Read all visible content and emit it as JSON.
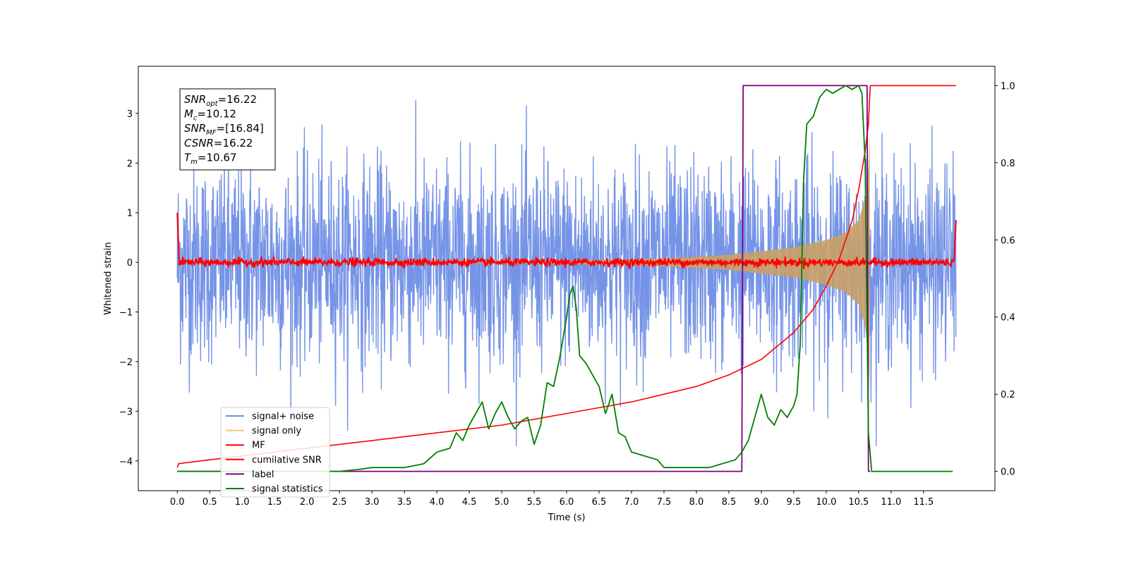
{
  "chart_data": {
    "type": "line",
    "xlabel": "Time (s)",
    "ylabel_left": "Whitened strain",
    "ylabel_right": "",
    "xlim": [
      -0.6,
      12.6
    ],
    "ylim_left": [
      -4.6,
      3.95
    ],
    "ylim_right": [
      -0.05,
      1.05
    ],
    "x_ticks": [
      "0.0",
      "0.5",
      "1.0",
      "1.5",
      "2.0",
      "2.5",
      "3.0",
      "3.5",
      "4.0",
      "4.5",
      "5.0",
      "5.5",
      "6.0",
      "6.5",
      "7.0",
      "7.5",
      "8.0",
      "8.5",
      "9.0",
      "9.5",
      "10.0",
      "10.5",
      "11.0",
      "11.5"
    ],
    "y_ticks_left": [
      "3",
      "2",
      "1",
      "0",
      "−1",
      "−2",
      "−3",
      "−4"
    ],
    "y_ticks_right": [
      "1.0",
      "0.8",
      "0.6",
      "0.4",
      "0.2",
      "0.0"
    ],
    "grid": false,
    "legend_position": "lower-left",
    "annotation": [
      {
        "name": "SNR",
        "sub": "opt",
        "value": "=16.22"
      },
      {
        "name": "M",
        "sub": "c",
        "value": "=10.12"
      },
      {
        "name": "SNR",
        "sub": "MF",
        "value": "=[16.84]"
      },
      {
        "name": "CSNR",
        "sub": "",
        "value": "=16.22"
      },
      {
        "name": "T",
        "sub": "m",
        "value": "=10.67"
      }
    ],
    "series": [
      {
        "name": "signal+ noise",
        "color": "#6f8ee6",
        "axis": "left",
        "description_values": {
          "t_start": 0.0,
          "t_end": 12.0,
          "noise_std": 1.0,
          "typical_peak": 3.5
        }
      },
      {
        "name": "signal only",
        "color": "#f5c66c",
        "axis": "left",
        "envelope": {
          "t": [
            0.0,
            6.0,
            7.5,
            8.5,
            9.5,
            10.0,
            10.3,
            10.5,
            10.6,
            10.65,
            10.67
          ],
          "amp": [
            0.0,
            0.03,
            0.08,
            0.15,
            0.3,
            0.45,
            0.6,
            0.85,
            1.3,
            1.9,
            2.6
          ]
        }
      },
      {
        "name": "MF",
        "color": "#ff0000",
        "axis": "left",
        "edges": {
          "start": 1.0,
          "end": 0.85,
          "level": 0.0,
          "noise_std": 0.04
        }
      },
      {
        "name": "cumilative SNR",
        "color": "#ff0000",
        "axis": "right",
        "t": [
          0.0,
          0.02,
          0.5,
          1.0,
          2.0,
          3.0,
          4.0,
          5.0,
          6.0,
          7.0,
          8.0,
          8.5,
          9.0,
          9.5,
          9.8,
          10.0,
          10.2,
          10.4,
          10.5,
          10.6,
          10.65,
          10.67,
          10.68,
          12.0
        ],
        "y": [
          0.01,
          0.02,
          0.03,
          0.04,
          0.06,
          0.08,
          0.1,
          0.12,
          0.15,
          0.18,
          0.22,
          0.25,
          0.29,
          0.36,
          0.42,
          0.48,
          0.55,
          0.65,
          0.73,
          0.83,
          0.9,
          0.97,
          1.0,
          1.0
        ]
      },
      {
        "name": "label",
        "color": "#800080",
        "axis": "right",
        "t": [
          0.0,
          8.7,
          8.72,
          10.63,
          10.65,
          10.68
        ],
        "y": [
          0.0,
          0.0,
          1.0,
          1.0,
          0.0,
          0.0
        ]
      },
      {
        "name": "signal statistics",
        "color": "#008000",
        "axis": "right",
        "t": [
          0.0,
          0.5,
          1.0,
          1.5,
          2.0,
          2.5,
          2.8,
          3.0,
          3.3,
          3.5,
          3.8,
          4.0,
          4.2,
          4.3,
          4.4,
          4.5,
          4.6,
          4.7,
          4.8,
          4.9,
          5.0,
          5.1,
          5.2,
          5.3,
          5.4,
          5.5,
          5.6,
          5.7,
          5.8,
          5.9,
          6.0,
          6.05,
          6.1,
          6.15,
          6.2,
          6.3,
          6.4,
          6.5,
          6.6,
          6.7,
          6.8,
          6.9,
          7.0,
          7.2,
          7.4,
          7.5,
          7.7,
          7.9,
          8.0,
          8.2,
          8.4,
          8.6,
          8.7,
          8.8,
          9.0,
          9.1,
          9.2,
          9.3,
          9.4,
          9.5,
          9.55,
          9.6,
          9.65,
          9.7,
          9.8,
          9.9,
          10.0,
          10.1,
          10.2,
          10.3,
          10.4,
          10.5,
          10.55,
          10.6,
          10.65,
          10.7,
          10.75,
          10.8,
          11.0,
          11.5,
          11.95
        ],
        "y": [
          0.0,
          0.0,
          0.0,
          0.0,
          0.0,
          0.0,
          0.005,
          0.01,
          0.01,
          0.01,
          0.02,
          0.05,
          0.06,
          0.1,
          0.08,
          0.12,
          0.15,
          0.18,
          0.11,
          0.15,
          0.18,
          0.14,
          0.11,
          0.13,
          0.14,
          0.07,
          0.12,
          0.23,
          0.22,
          0.3,
          0.4,
          0.46,
          0.48,
          0.42,
          0.3,
          0.28,
          0.25,
          0.22,
          0.15,
          0.2,
          0.1,
          0.09,
          0.05,
          0.04,
          0.03,
          0.01,
          0.01,
          0.01,
          0.01,
          0.01,
          0.02,
          0.03,
          0.05,
          0.08,
          0.2,
          0.14,
          0.12,
          0.16,
          0.14,
          0.17,
          0.2,
          0.33,
          0.75,
          0.9,
          0.92,
          0.97,
          0.99,
          0.98,
          0.99,
          1.0,
          0.99,
          1.0,
          0.98,
          0.8,
          0.1,
          0.0,
          0.0,
          0.0,
          0.0,
          0.0,
          0.0
        ]
      }
    ]
  }
}
